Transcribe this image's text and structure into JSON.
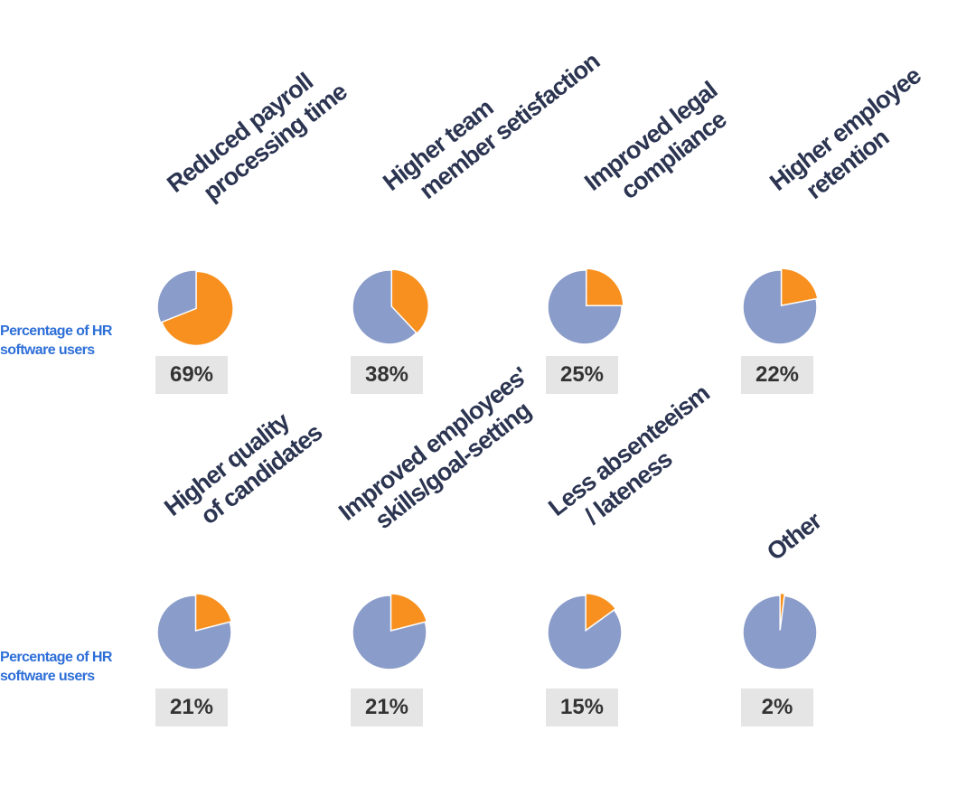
{
  "row_label": [
    "Percentage of HR",
    "software users"
  ],
  "colors": {
    "share": "#f7901e",
    "rest": "#8a9cc9",
    "label": "#2e6fd8",
    "title": "#2b3450",
    "badge_bg": "#e5e5e5"
  },
  "items": [
    {
      "title_lines": [
        "Reduced payroll",
        "processing time"
      ],
      "value_label": "69%"
    },
    {
      "title_lines": [
        "Higher team",
        "member setisfaction"
      ],
      "value_label": "38%"
    },
    {
      "title_lines": [
        "Improved legal",
        "compliance"
      ],
      "value_label": "25%"
    },
    {
      "title_lines": [
        "Higher employee",
        "retention"
      ],
      "value_label": "22%"
    },
    {
      "title_lines": [
        "Higher quality",
        "of candidates"
      ],
      "value_label": "21%"
    },
    {
      "title_lines": [
        "Improved employees'",
        "skills/goal-setting"
      ],
      "value_label": "21%"
    },
    {
      "title_lines": [
        "Less absenteeism",
        "/ lateness"
      ],
      "value_label": "15%"
    },
    {
      "title_lines": [
        "Other"
      ],
      "value_label": "2%"
    }
  ],
  "chart_data": {
    "type": "pie",
    "categories": [
      "Reduced payroll processing time",
      "Higher team member setisfaction",
      "Improved legal compliance",
      "Higher employee retention",
      "Higher quality of candidates",
      "Improved employees' skills/goal-setting",
      "Less absenteeism / lateness",
      "Other"
    ],
    "values": [
      69,
      38,
      25,
      22,
      21,
      21,
      15,
      2
    ],
    "unit": "%"
  }
}
